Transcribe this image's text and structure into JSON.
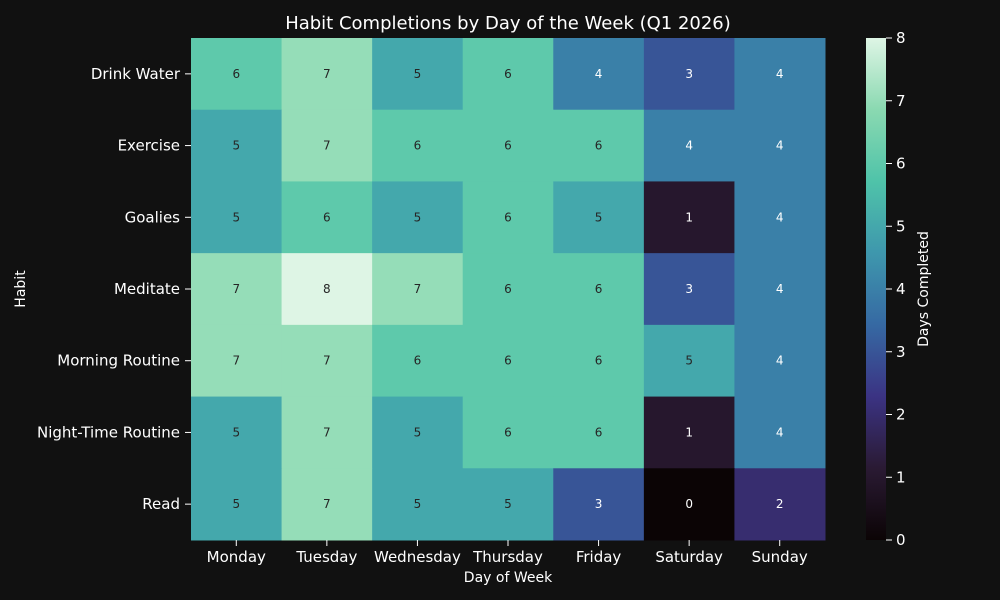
{
  "chart_data": {
    "type": "heatmap",
    "title": "Habit Completions by Day of the Week (Q1 2026)",
    "xlabel": "Day of Week",
    "ylabel": "Habit",
    "x_categories": [
      "Monday",
      "Tuesday",
      "Wednesday",
      "Thursday",
      "Friday",
      "Saturday",
      "Sunday"
    ],
    "y_categories": [
      "Drink Water",
      "Exercise",
      "Goalies",
      "Meditate",
      "Morning Routine",
      "Night-Time Routine",
      "Read"
    ],
    "values": [
      [
        6,
        7,
        5,
        6,
        4,
        3,
        4
      ],
      [
        5,
        7,
        6,
        6,
        6,
        4,
        4
      ],
      [
        5,
        6,
        5,
        6,
        5,
        1,
        4
      ],
      [
        7,
        8,
        7,
        6,
        6,
        3,
        4
      ],
      [
        7,
        7,
        6,
        6,
        6,
        5,
        4
      ],
      [
        5,
        7,
        5,
        6,
        6,
        1,
        4
      ],
      [
        5,
        7,
        5,
        5,
        3,
        0,
        2
      ]
    ],
    "colorbar": {
      "label": "Days Completed",
      "range": [
        0,
        8
      ],
      "ticks": [
        0,
        1,
        2,
        3,
        4,
        5,
        6,
        7,
        8
      ],
      "colors": [
        "#0b0405",
        "#2a1a33",
        "#3b3383",
        "#3669a3",
        "#3e97ad",
        "#4fc3a9",
        "#8ad9b1",
        "#def5e5"
      ]
    },
    "grid": false,
    "legend": "right"
  }
}
